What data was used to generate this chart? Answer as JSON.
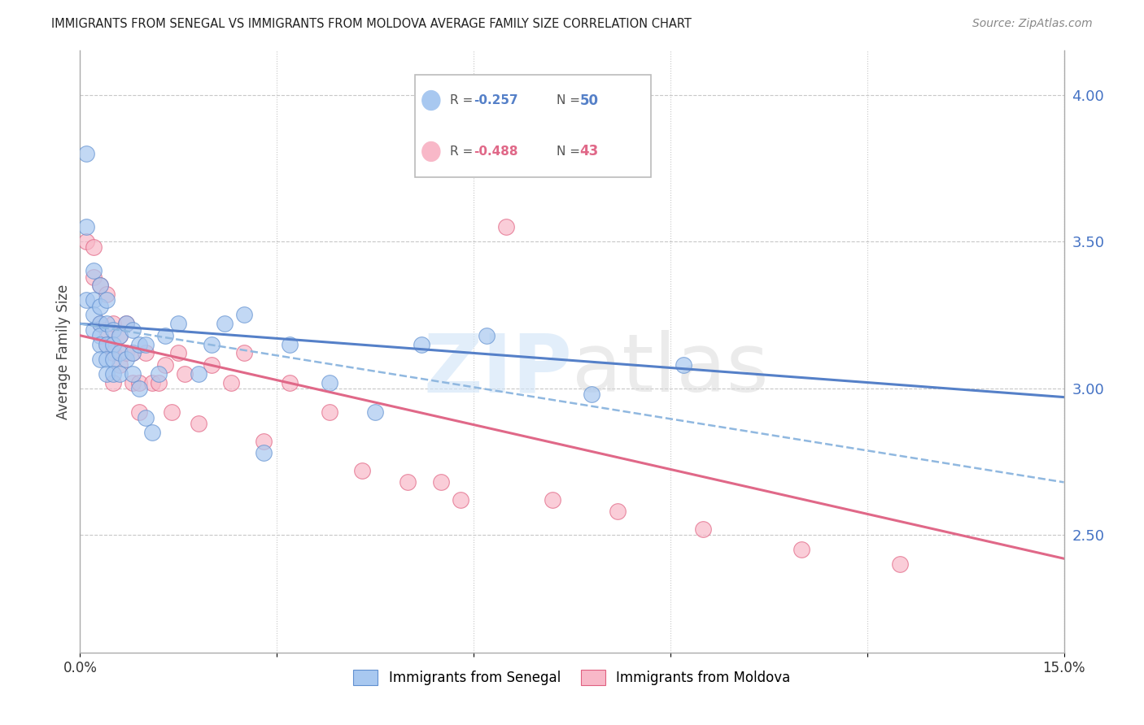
{
  "title": "IMMIGRANTS FROM SENEGAL VS IMMIGRANTS FROM MOLDOVA AVERAGE FAMILY SIZE CORRELATION CHART",
  "source": "Source: ZipAtlas.com",
  "ylabel": "Average Family Size",
  "xlim": [
    0.0,
    0.15
  ],
  "ylim": [
    2.1,
    4.15
  ],
  "xticks": [
    0.0,
    0.03,
    0.06,
    0.09,
    0.12,
    0.15
  ],
  "xticklabels": [
    "0.0%",
    "",
    "",
    "",
    "",
    "15.0%"
  ],
  "yticks_right": [
    2.5,
    3.0,
    3.5,
    4.0
  ],
  "right_axis_color": "#4472c4",
  "grid_color": "#c8c8c8",
  "legend_R1": "-0.257",
  "legend_N1": "50",
  "legend_R2": "-0.488",
  "legend_N2": "43",
  "senegal_color": "#a8c8f0",
  "moldova_color": "#f8b8c8",
  "senegal_edge_color": "#6090d0",
  "moldova_edge_color": "#e06080",
  "senegal_line_color": "#5580c8",
  "moldova_line_color": "#e06888",
  "dashed_line_color": "#90b8e0",
  "senegal_label": "Immigrants from Senegal",
  "moldova_label": "Immigrants from Moldova",
  "senegal_scatter_x": [
    0.001,
    0.001,
    0.001,
    0.002,
    0.002,
    0.002,
    0.002,
    0.003,
    0.003,
    0.003,
    0.003,
    0.003,
    0.003,
    0.004,
    0.004,
    0.004,
    0.004,
    0.004,
    0.005,
    0.005,
    0.005,
    0.005,
    0.006,
    0.006,
    0.006,
    0.007,
    0.007,
    0.008,
    0.008,
    0.008,
    0.009,
    0.009,
    0.01,
    0.01,
    0.011,
    0.012,
    0.013,
    0.015,
    0.018,
    0.02,
    0.022,
    0.025,
    0.028,
    0.032,
    0.038,
    0.045,
    0.052,
    0.062,
    0.078,
    0.092
  ],
  "senegal_scatter_y": [
    3.8,
    3.55,
    3.3,
    3.4,
    3.3,
    3.25,
    3.2,
    3.35,
    3.28,
    3.22,
    3.18,
    3.15,
    3.1,
    3.3,
    3.22,
    3.15,
    3.1,
    3.05,
    3.2,
    3.15,
    3.1,
    3.05,
    3.18,
    3.12,
    3.05,
    3.22,
    3.1,
    3.2,
    3.12,
    3.05,
    3.15,
    3.0,
    3.15,
    2.9,
    2.85,
    3.05,
    3.18,
    3.22,
    3.05,
    3.15,
    3.22,
    3.25,
    2.78,
    3.15,
    3.02,
    2.92,
    3.15,
    3.18,
    2.98,
    3.08
  ],
  "moldova_scatter_x": [
    0.001,
    0.002,
    0.002,
    0.003,
    0.003,
    0.004,
    0.004,
    0.004,
    0.005,
    0.005,
    0.005,
    0.006,
    0.006,
    0.007,
    0.007,
    0.008,
    0.008,
    0.009,
    0.009,
    0.01,
    0.011,
    0.012,
    0.013,
    0.014,
    0.015,
    0.016,
    0.018,
    0.02,
    0.023,
    0.025,
    0.028,
    0.032,
    0.038,
    0.043,
    0.05,
    0.058,
    0.065,
    0.055,
    0.072,
    0.082,
    0.095,
    0.11,
    0.125
  ],
  "moldova_scatter_y": [
    3.5,
    3.48,
    3.38,
    3.35,
    3.22,
    3.32,
    3.2,
    3.15,
    3.22,
    3.12,
    3.02,
    3.18,
    3.08,
    3.22,
    3.12,
    3.12,
    3.02,
    3.02,
    2.92,
    3.12,
    3.02,
    3.02,
    3.08,
    2.92,
    3.12,
    3.05,
    2.88,
    3.08,
    3.02,
    3.12,
    2.82,
    3.02,
    2.92,
    2.72,
    2.68,
    2.62,
    3.55,
    2.68,
    2.62,
    2.58,
    2.52,
    2.45,
    2.4
  ],
  "senegal_trend_x": [
    0.0,
    0.15
  ],
  "senegal_trend_y": [
    3.22,
    2.97
  ],
  "moldova_trend_x": [
    0.0,
    0.15
  ],
  "moldova_trend_y": [
    3.18,
    2.42
  ],
  "dashed_trend_x": [
    0.0,
    0.15
  ],
  "dashed_trend_y": [
    3.22,
    2.68
  ]
}
